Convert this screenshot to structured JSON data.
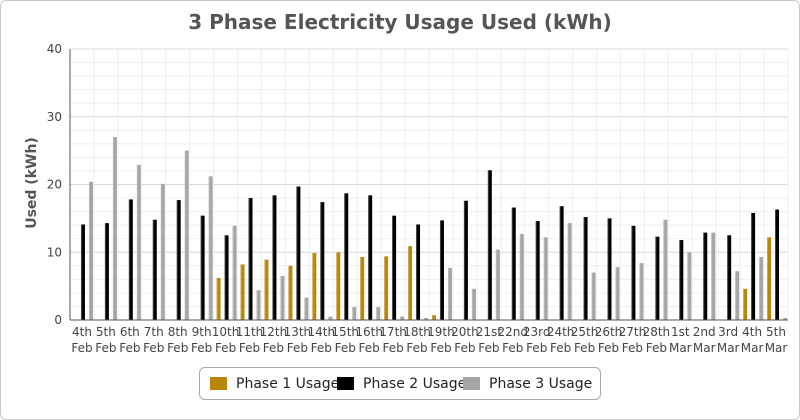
{
  "chart_data": {
    "type": "bar",
    "title": "3 Phase Electricity Usage Used (kWh)",
    "xlabel": "",
    "ylabel": "Used (kWh)",
    "ylim": [
      0,
      40
    ],
    "yticks": [
      0,
      10,
      20,
      30,
      40
    ],
    "grid": true,
    "legend_position": "bottom",
    "categories": [
      [
        "4th",
        "Feb"
      ],
      [
        "5th",
        "Feb"
      ],
      [
        "6th",
        "Feb"
      ],
      [
        "7th",
        "Feb"
      ],
      [
        "8th",
        "Feb"
      ],
      [
        "9th",
        "Feb"
      ],
      [
        "10th",
        "Feb"
      ],
      [
        "11th",
        "Feb"
      ],
      [
        "12th",
        "Feb"
      ],
      [
        "13th",
        "Feb"
      ],
      [
        "14th",
        "Feb"
      ],
      [
        "15th",
        "Feb"
      ],
      [
        "16th",
        "Feb"
      ],
      [
        "17th",
        "Feb"
      ],
      [
        "18th",
        "Feb"
      ],
      [
        "19th",
        "Feb"
      ],
      [
        "20th",
        "Feb"
      ],
      [
        "21st",
        "Feb"
      ],
      [
        "22nd",
        "Feb"
      ],
      [
        "23rd",
        "Feb"
      ],
      [
        "24th",
        "Feb"
      ],
      [
        "25th",
        "Feb"
      ],
      [
        "26th",
        "Feb"
      ],
      [
        "27th",
        "Feb"
      ],
      [
        "28th",
        "Feb"
      ],
      [
        "1st",
        "Mar"
      ],
      [
        "2nd",
        "Mar"
      ],
      [
        "3rd",
        "Mar"
      ],
      [
        "4th",
        "Mar"
      ],
      [
        "5th",
        "Mar"
      ]
    ],
    "series": [
      {
        "name": "Phase 1 Usage",
        "color": "#b8860b",
        "values": [
          0,
          0,
          0,
          0,
          0,
          0,
          6.2,
          8.2,
          8.9,
          8.0,
          9.9,
          10.0,
          9.3,
          9.4,
          10.9,
          0.7,
          0,
          0,
          0,
          0,
          0,
          0,
          0,
          0,
          0,
          0,
          0,
          0,
          4.6,
          12.2
        ]
      },
      {
        "name": "Phase 2 Usage",
        "color": "#000000",
        "values": [
          14.1,
          14.3,
          17.8,
          14.8,
          17.7,
          15.4,
          12.5,
          18.0,
          18.4,
          19.7,
          17.4,
          18.7,
          18.4,
          15.4,
          14.1,
          14.7,
          17.6,
          22.1,
          16.6,
          14.6,
          16.8,
          15.2,
          15.0,
          13.9,
          12.3,
          11.8,
          12.9,
          12.5,
          15.8,
          16.3
        ]
      },
      {
        "name": "Phase 3 Usage",
        "color": "#a5a5a5",
        "values": [
          20.4,
          27.0,
          22.9,
          20.1,
          25.0,
          21.2,
          13.9,
          4.4,
          6.5,
          3.3,
          0.5,
          1.9,
          1.9,
          0.5,
          0.3,
          7.7,
          4.6,
          10.4,
          12.7,
          12.2,
          14.3,
          7.0,
          7.8,
          8.4,
          14.8,
          10.0,
          12.9,
          7.2,
          9.3,
          0.3
        ]
      }
    ]
  },
  "legend": {
    "items": [
      {
        "label": "Phase 1 Usage",
        "color": "#b8860b"
      },
      {
        "label": "Phase 2 Usage",
        "color": "#000000"
      },
      {
        "label": "Phase 3 Usage",
        "color": "#a5a5a5"
      }
    ]
  }
}
